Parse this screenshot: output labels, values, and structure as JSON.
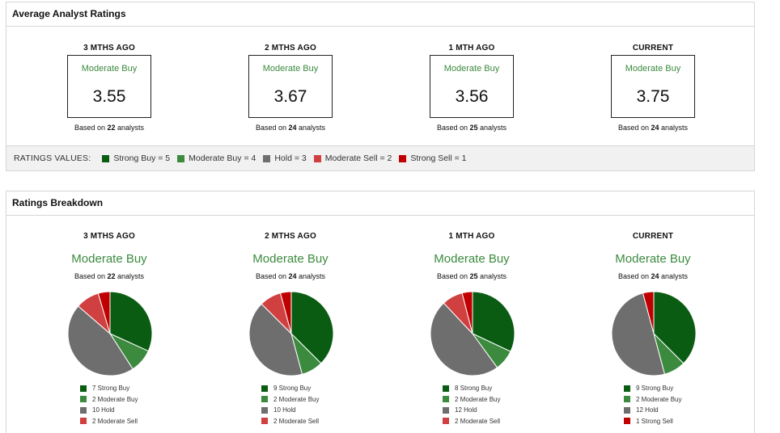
{
  "avg_ratings": {
    "title": "Average Analyst Ratings",
    "periods": [
      {
        "label": "3 MTHS AGO",
        "consensus": "Moderate Buy",
        "score": "3.55",
        "analysts": "22"
      },
      {
        "label": "2 MTHS AGO",
        "consensus": "Moderate Buy",
        "score": "3.67",
        "analysts": "24"
      },
      {
        "label": "1 MTH AGO",
        "consensus": "Moderate Buy",
        "score": "3.56",
        "analysts": "25"
      },
      {
        "label": "CURRENT",
        "consensus": "Moderate Buy",
        "score": "3.75",
        "analysts": "24"
      }
    ],
    "based_on_prefix": "Based on",
    "based_on_suffix": "analysts",
    "values_title": "RATINGS VALUES:",
    "values": [
      {
        "text": "Strong Buy = 5",
        "color": "#0a5c12"
      },
      {
        "text": "Moderate Buy = 4",
        "color": "#3b8a3e"
      },
      {
        "text": "Hold = 3",
        "color": "#6e6e6e"
      },
      {
        "text": "Moderate Sell = 2",
        "color": "#d04040"
      },
      {
        "text": "Strong Sell = 1",
        "color": "#c00000"
      }
    ]
  },
  "breakdown": {
    "title": "Ratings Breakdown",
    "periods": [
      {
        "label": "3 MTHS AGO",
        "consensus": "Moderate Buy",
        "analysts": "22",
        "slices": [
          {
            "count": 7,
            "text": "7 Strong Buy",
            "color": "#0a5c12"
          },
          {
            "count": 2,
            "text": "2 Moderate Buy",
            "color": "#3b8a3e"
          },
          {
            "count": 10,
            "text": "10 Hold",
            "color": "#6e6e6e"
          },
          {
            "count": 2,
            "text": "2 Moderate Sell",
            "color": "#d04040"
          },
          {
            "count": 1,
            "text": "",
            "color": "#c00000"
          }
        ]
      },
      {
        "label": "2 MTHS AGO",
        "consensus": "Moderate Buy",
        "analysts": "24",
        "slices": [
          {
            "count": 9,
            "text": "9 Strong Buy",
            "color": "#0a5c12"
          },
          {
            "count": 2,
            "text": "2 Moderate Buy",
            "color": "#3b8a3e"
          },
          {
            "count": 10,
            "text": "10 Hold",
            "color": "#6e6e6e"
          },
          {
            "count": 2,
            "text": "2 Moderate Sell",
            "color": "#d04040"
          },
          {
            "count": 1,
            "text": "",
            "color": "#c00000"
          }
        ]
      },
      {
        "label": "1 MTH AGO",
        "consensus": "Moderate Buy",
        "analysts": "25",
        "slices": [
          {
            "count": 8,
            "text": "8 Strong Buy",
            "color": "#0a5c12"
          },
          {
            "count": 2,
            "text": "2 Moderate Buy",
            "color": "#3b8a3e"
          },
          {
            "count": 12,
            "text": "12 Hold",
            "color": "#6e6e6e"
          },
          {
            "count": 2,
            "text": "2 Moderate Sell",
            "color": "#d04040"
          },
          {
            "count": 1,
            "text": "",
            "color": "#c00000"
          }
        ]
      },
      {
        "label": "CURRENT",
        "consensus": "Moderate Buy",
        "analysts": "24",
        "slices": [
          {
            "count": 9,
            "text": "9 Strong Buy",
            "color": "#0a5c12"
          },
          {
            "count": 2,
            "text": "2 Moderate Buy",
            "color": "#3b8a3e"
          },
          {
            "count": 12,
            "text": "12 Hold",
            "color": "#6e6e6e"
          },
          {
            "count": 0,
            "text": "",
            "color": "#d04040"
          },
          {
            "count": 1,
            "text": "1 Strong Sell",
            "color": "#c00000"
          }
        ]
      }
    ]
  }
}
